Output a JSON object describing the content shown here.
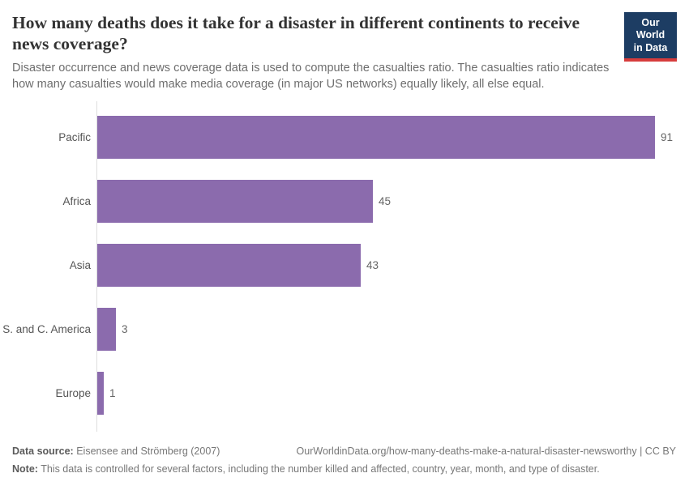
{
  "header": {
    "title": "How many deaths does it take for a disaster in different continents to receive news coverage?",
    "subtitle": "Disaster occurrence and news coverage data is used to compute the casualties ratio. The casualties ratio indicates how many casualties would make media coverage (in major US networks) equally likely, all else equal.",
    "logo": {
      "line1": "Our World",
      "line2": "in Data",
      "bg_color": "#1d3d63",
      "accent_color": "#d73c3c"
    }
  },
  "chart_data": {
    "type": "bar",
    "orientation": "horizontal",
    "title": "How many deaths does it take for a disaster in different continents to receive news coverage?",
    "categories": [
      "Pacific",
      "Africa",
      "Asia",
      "S. and C. America",
      "Europe"
    ],
    "values": [
      91,
      45,
      43,
      3,
      1
    ],
    "xlim": [
      0,
      91
    ],
    "grid": false,
    "legend": "none",
    "bar_color": "#8b6bad",
    "category_label_color": "#555555",
    "value_label_color": "#666666"
  },
  "footer": {
    "source_label": "Data source:",
    "source_value": "Eisensee and Strömberg (2007)",
    "url_line": "OurWorldinData.org/how-many-deaths-make-a-natural-disaster-newsworthy | CC BY",
    "note_label": "Note:",
    "note_value": "This data is controlled for several factors, including the number killed and affected, country, year, month, and type of disaster."
  }
}
